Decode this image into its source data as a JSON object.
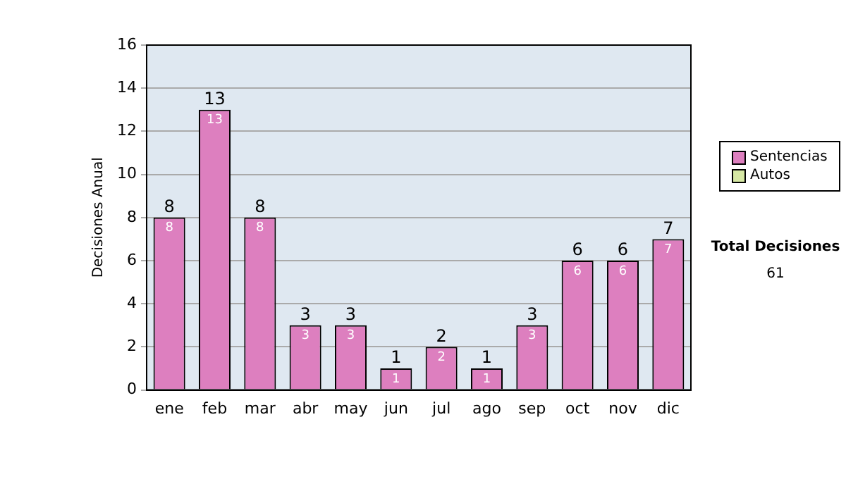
{
  "chart_data": {
    "type": "bar",
    "stacked": true,
    "ylabel": "Decisiones Anual",
    "categories": [
      "ene",
      "feb",
      "mar",
      "abr",
      "may",
      "jun",
      "jul",
      "ago",
      "sep",
      "oct",
      "nov",
      "dic"
    ],
    "series": [
      {
        "name": "Sentencias",
        "color": "#dd7fbf",
        "values": [
          8,
          13,
          8,
          3,
          3,
          1,
          2,
          1,
          3,
          6,
          6,
          7
        ],
        "value_labels": [
          "8",
          "13",
          "8",
          "3",
          "3",
          "1",
          "2",
          "1",
          "3",
          "6",
          "6",
          "7"
        ]
      },
      {
        "name": "Autos",
        "color": "#d6e8a4",
        "values": [
          0,
          0,
          0,
          0,
          0,
          0,
          0,
          0,
          0,
          0,
          0,
          0
        ]
      }
    ],
    "ylim": [
      0,
      16
    ],
    "yticks": [
      0,
      2,
      4,
      6,
      8,
      10,
      12,
      14,
      16
    ],
    "grid": "y",
    "legend": "right",
    "totals": [
      "8",
      "13",
      "8",
      "3",
      "3",
      "1",
      "2",
      "1",
      "3",
      "6",
      "6",
      "7"
    ],
    "annotations": [
      "Total Decisiones",
      "61"
    ]
  }
}
